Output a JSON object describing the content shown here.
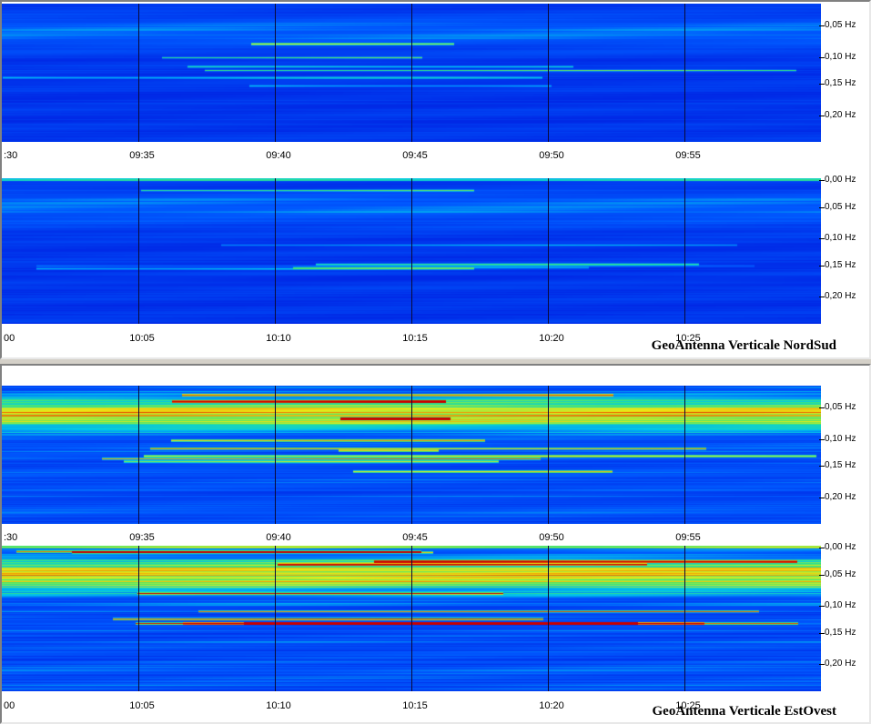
{
  "panels": [
    {
      "id": "ns",
      "title": "GeoAntenna Verticale NordSud",
      "strips": [
        {
          "time_labels": [
            ":30",
            "09:35",
            "09:40",
            "09:45",
            "09:50",
            "09:55"
          ],
          "freq_labels": [
            "0,05 Hz",
            "0,10 Hz",
            "0,15 Hz",
            "0,20 Hz"
          ],
          "intensity": "low"
        },
        {
          "time_labels": [
            "00",
            "10:05",
            "10:10",
            "10:15",
            "10:20",
            "10:25"
          ],
          "freq_labels": [
            "0,00 Hz",
            "0,05 Hz",
            "0,10 Hz",
            "0,15 Hz",
            "0,20 Hz"
          ],
          "intensity": "low"
        }
      ]
    },
    {
      "id": "eo",
      "title": "GeoAntenna Verticale EstOvest",
      "strips": [
        {
          "time_labels": [
            ":30",
            "09:35",
            "09:40",
            "09:45",
            "09:50",
            "09:55"
          ],
          "freq_labels": [
            "0,05 Hz",
            "0,10 Hz",
            "0,15 Hz",
            "0,20 Hz"
          ],
          "intensity": "high"
        },
        {
          "time_labels": [
            "00",
            "10:05",
            "10:10",
            "10:15",
            "10:20",
            "10:25"
          ],
          "freq_labels": [
            "0,00 Hz",
            "0,05 Hz",
            "0,10 Hz",
            "0,15 Hz",
            "0,20 Hz"
          ],
          "intensity": "high"
        }
      ]
    }
  ],
  "colors": {
    "low": "#0033ff",
    "mid": "#00e0e0",
    "green": "#40e060",
    "yellow": "#f0f000",
    "high": "#d00000"
  }
}
